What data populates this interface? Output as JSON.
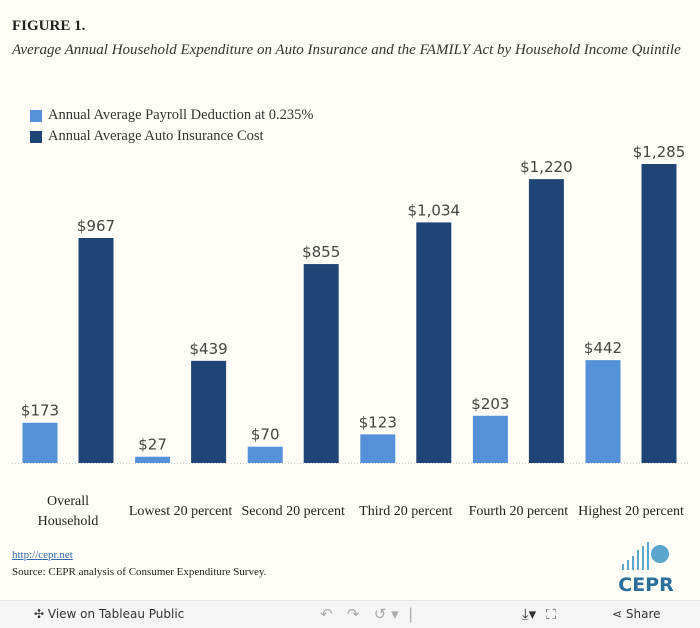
{
  "chart_data": {
    "type": "bar",
    "title": "FIGURE 1.",
    "subtitle": "Average Annual Household Expenditure on Auto Insurance and the FAMILY Act by Household Income Quintile",
    "categories": [
      "Overall Household",
      "Lowest 20 percent",
      "Second 20 percent",
      "Third 20 percent",
      "Fourth 20 percent",
      "Highest 20 percent"
    ],
    "series": [
      {
        "name": "Annual Average Payroll Deduction at 0.235%",
        "color": "#5591d9",
        "values": [
          173,
          27,
          70,
          123,
          203,
          442
        ],
        "value_labels": [
          "$173",
          "$27",
          "$70",
          "$123",
          "$203",
          "$442"
        ]
      },
      {
        "name": "Annual Average Auto Insurance Cost",
        "color": "#1f4577",
        "values": [
          967,
          439,
          855,
          1034,
          1220,
          1285
        ],
        "value_labels": [
          "$967",
          "$439",
          "$855",
          "$1,034",
          "$1,220",
          "$1,285"
        ]
      }
    ]
  },
  "footer": {
    "link": "http://cepr.net",
    "source": "Source: CEPR analysis of Consumer Expenditure Survey.",
    "logo": "CEPR"
  },
  "toolbar": {
    "view": "View on Tableau Public",
    "share": "Share"
  }
}
